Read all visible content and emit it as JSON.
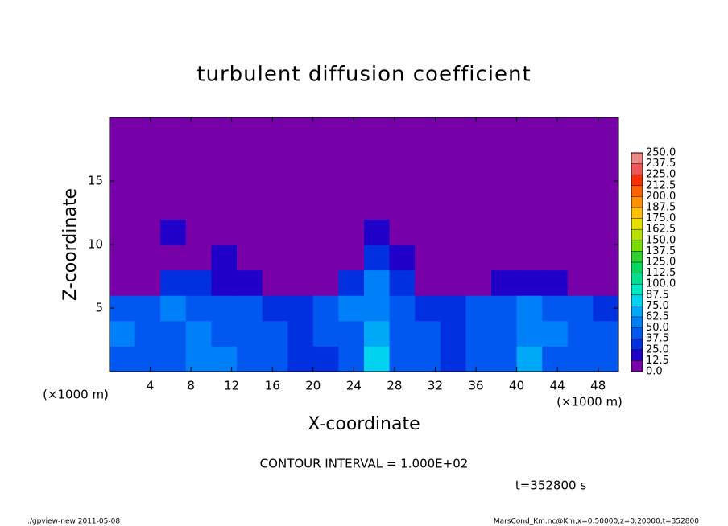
{
  "chart_data": {
    "type": "heatmap",
    "title": "turbulent diffusion coefficient",
    "x_label": "X-coordinate",
    "y_label": "Z-coordinate",
    "x_unit": "(×1000 m)",
    "y_unit": "(×1000 m)",
    "xlim": [
      0,
      50
    ],
    "ylim": [
      0,
      20
    ],
    "xticks": [
      4,
      8,
      12,
      16,
      20,
      24,
      28,
      32,
      36,
      40,
      44,
      48
    ],
    "yticks": [
      5,
      10,
      15
    ],
    "xbins": [
      0,
      2.5,
      5,
      7.5,
      10,
      12.5,
      15,
      17.5,
      20,
      22.5,
      25,
      27.5,
      30,
      32.5,
      35,
      37.5,
      40,
      42.5,
      45,
      47.5,
      50
    ],
    "ybins": [
      0,
      2,
      4,
      6,
      8,
      10,
      12,
      14,
      16,
      18,
      20
    ],
    "z": [
      [
        45,
        40,
        45,
        50,
        50,
        45,
        40,
        35,
        35,
        40,
        75,
        45,
        40,
        35,
        40,
        45,
        70,
        45,
        40,
        45
      ],
      [
        50,
        45,
        45,
        50,
        45,
        45,
        40,
        35,
        40,
        45,
        65,
        45,
        40,
        35,
        45,
        45,
        60,
        50,
        45,
        40
      ],
      [
        40,
        45,
        50,
        45,
        45,
        40,
        35,
        25,
        40,
        50,
        60,
        45,
        35,
        25,
        40,
        45,
        55,
        45,
        40,
        35
      ],
      [
        10,
        12,
        25,
        25,
        20,
        15,
        5,
        0,
        10,
        30,
        50,
        30,
        10,
        0,
        5,
        15,
        15,
        15,
        10,
        5
      ],
      [
        5,
        10,
        12,
        10,
        15,
        5,
        0,
        0,
        5,
        10,
        25,
        15,
        5,
        0,
        0,
        5,
        0,
        5,
        10,
        10
      ],
      [
        10,
        12,
        20,
        12,
        5,
        5,
        10,
        5,
        5,
        5,
        15,
        10,
        0,
        5,
        0,
        5,
        5,
        10,
        5,
        5
      ],
      [
        5,
        10,
        10,
        5,
        0,
        5,
        0,
        0,
        0,
        0,
        5,
        5,
        5,
        0,
        0,
        0,
        0,
        5,
        10,
        5
      ],
      [
        5,
        10,
        5,
        0,
        0,
        0,
        5,
        0,
        0,
        0,
        0,
        0,
        0,
        0,
        0,
        0,
        0,
        0,
        0,
        0
      ],
      [
        0,
        0,
        0,
        0,
        0,
        0,
        0,
        0,
        0,
        0,
        0,
        0,
        0,
        0,
        0,
        0,
        0,
        0,
        0,
        0
      ],
      [
        0,
        0,
        0,
        0,
        0,
        0,
        0,
        0,
        0,
        0,
        0,
        0,
        0,
        0,
        0,
        0,
        0,
        0,
        0,
        0
      ]
    ],
    "levels": [
      {
        "value": 0,
        "label": "0.0"
      },
      12.5,
      {
        "value": 25,
        "label": "25.0"
      },
      37.5,
      {
        "value": 50,
        "label": "50.0"
      },
      62.5,
      {
        "value": 75,
        "label": "75.0"
      },
      87.5,
      {
        "value": 100,
        "label": "100.0"
      },
      112.5,
      {
        "value": 125,
        "label": "125.0"
      },
      137.5,
      {
        "value": 150,
        "label": "150.0"
      },
      162.5,
      {
        "value": 175,
        "label": "175.0"
      },
      187.5,
      {
        "value": 200,
        "label": "200.0"
      },
      212.5,
      {
        "value": 225,
        "label": "225.0"
      },
      237.5,
      {
        "value": 250,
        "label": "250.0"
      }
    ],
    "colors": [
      "#7800a8",
      "#2000c8",
      "#0030e0",
      "#0058f0",
      "#0080f8",
      "#00a8f8",
      "#00d4f0",
      "#00e8c4",
      "#00e090",
      "#00d860",
      "#30d030",
      "#78e000",
      "#b8e000",
      "#e8e000",
      "#ffc000",
      "#ff9000",
      "#ff6000",
      "#ff3000",
      "#f05858",
      "#f08888"
    ],
    "contour_note": "CONTOUR INTERVAL = 1.000E+02",
    "time_note": "t=352800 s",
    "footer_left": "./gpview-new  2011-05-08",
    "footer_right": "MarsCond_Km.nc@Km,x=0:50000,z=0:20000,t=352800"
  }
}
